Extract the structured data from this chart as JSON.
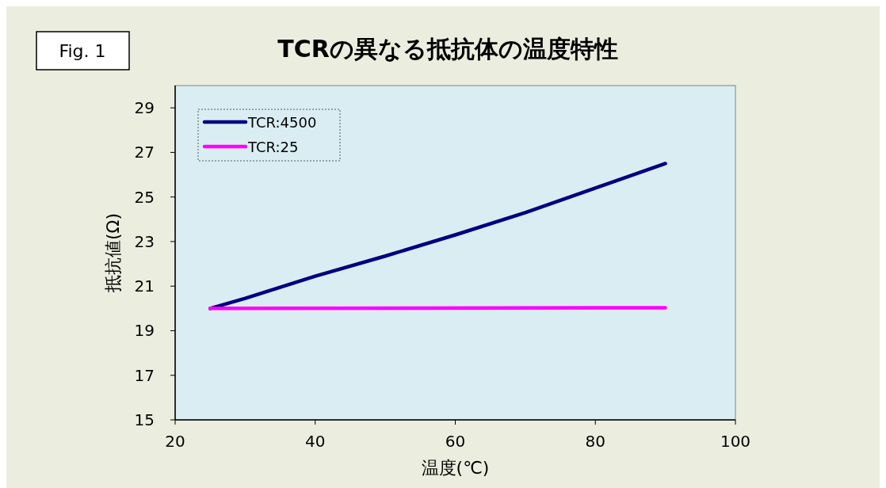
{
  "chart_data": {
    "type": "line",
    "title": "TCRの異なる抵抗体の温度特性",
    "xlabel": "温度(℃)",
    "ylabel": "抵抗値(Ω)",
    "annotations": [
      "Fig. 1"
    ],
    "series": [
      {
        "name": "TCR:4500",
        "color": "#000080",
        "x": [
          25,
          30,
          40,
          50,
          60,
          70,
          80,
          90
        ],
        "values": [
          20,
          20.45,
          21.45,
          22.35,
          23.3,
          24.3,
          25.4,
          26.5
        ]
      },
      {
        "name": "TCR:25",
        "color": "#ff00ff",
        "x": [
          25,
          90
        ],
        "values": [
          20,
          20.03
        ]
      }
    ],
    "xlim": [
      20,
      100
    ],
    "xticks": [
      20,
      40,
      60,
      80,
      100
    ],
    "ylim": [
      15,
      30
    ],
    "yticks": [
      15,
      17,
      19,
      21,
      23,
      25,
      27,
      29
    ],
    "grid": false,
    "legend": "top left",
    "marker": "none",
    "line_style": "solid"
  }
}
